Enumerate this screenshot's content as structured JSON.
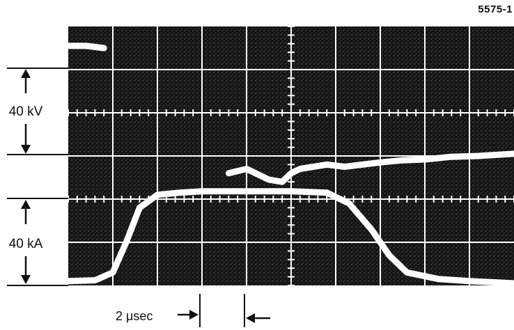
{
  "figure_id": "5575-1",
  "voltage_scale_label": "40 kV",
  "current_scale_label": "40 kA",
  "time_scale_label": "2 μsec",
  "colors": {
    "screen": "#141414",
    "trace": "#ffffff",
    "grid": "#ffffff",
    "ink": "#111111"
  },
  "grid": {
    "columns": 10,
    "rows": 6
  },
  "chart_data": {
    "type": "line",
    "series": [
      {
        "values": [
          [
            0,
            5.55
          ],
          [
            0.4,
            5.55
          ],
          [
            0.8,
            5.5
          ]
        ]
      },
      {
        "values": [
          [
            3.6,
            2.6
          ],
          [
            4.0,
            2.7
          ],
          [
            4.5,
            2.45
          ],
          [
            4.8,
            2.4
          ],
          [
            5.0,
            2.6
          ],
          [
            5.2,
            2.7
          ],
          [
            5.5,
            2.75
          ],
          [
            5.8,
            2.8
          ],
          [
            6.2,
            2.75
          ],
          [
            6.6,
            2.8
          ],
          [
            7.0,
            2.85
          ],
          [
            7.5,
            2.9
          ],
          [
            8.0,
            2.92
          ],
          [
            8.6,
            2.98
          ],
          [
            9.2,
            3.0
          ],
          [
            10,
            3.05
          ]
        ]
      },
      {
        "values": [
          [
            0,
            0.1
          ],
          [
            0.6,
            0.12
          ],
          [
            1.0,
            0.3
          ],
          [
            1.3,
            1.0
          ],
          [
            1.6,
            1.8
          ],
          [
            2.0,
            2.1
          ],
          [
            2.5,
            2.15
          ],
          [
            3.0,
            2.18
          ],
          [
            3.5,
            2.18
          ],
          [
            4.0,
            2.18
          ],
          [
            5.0,
            2.18
          ],
          [
            5.8,
            2.15
          ],
          [
            6.3,
            1.9
          ],
          [
            6.8,
            1.3
          ],
          [
            7.2,
            0.7
          ],
          [
            7.6,
            0.3
          ],
          [
            8.3,
            0.15
          ],
          [
            9.0,
            0.1
          ],
          [
            10,
            0.05
          ]
        ]
      }
    ]
  }
}
